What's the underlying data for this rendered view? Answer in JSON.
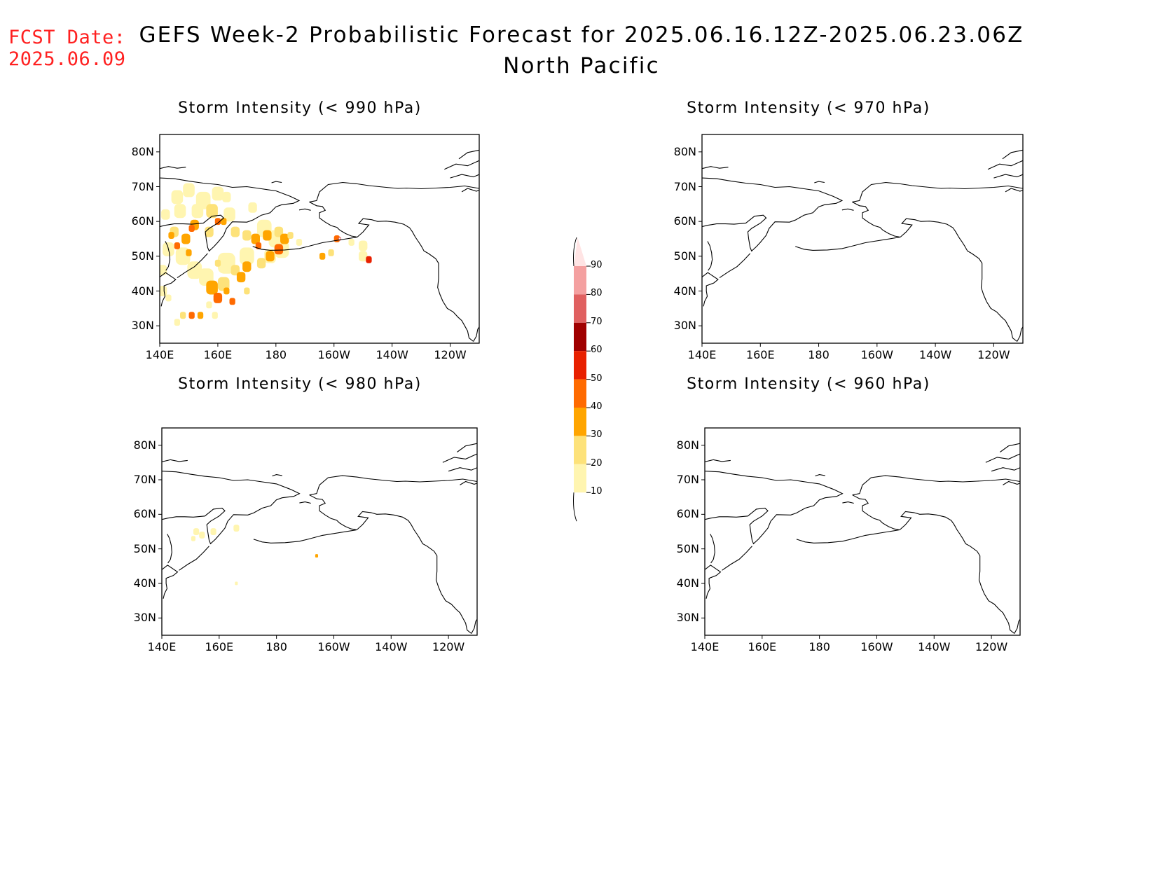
{
  "header": {
    "fcst_date_label": "FCST Date:",
    "fcst_date_value": "2025.06.09",
    "title_line1": "GEFS Week-2 Probabilistic Forecast for 2025.06.16.12Z-2025.06.23.06Z",
    "title_line2": "North Pacific"
  },
  "axes": {
    "y_ticks": [
      "80N",
      "70N",
      "60N",
      "50N",
      "40N",
      "30N"
    ],
    "x_ticks": [
      "140E",
      "160E",
      "180",
      "160W",
      "140W",
      "120W"
    ]
  },
  "panels": [
    {
      "id": "p990",
      "title": "Storm Intensity (< 990 hPa)",
      "has_data": true
    },
    {
      "id": "p970",
      "title": "Storm Intensity (< 970 hPa)",
      "has_data": false
    },
    {
      "id": "p980",
      "title": "Storm Intensity (< 980 hPa)",
      "has_data": true
    },
    {
      "id": "p960",
      "title": "Storm Intensity (< 960 hPa)",
      "has_data": false
    }
  ],
  "colorbar": {
    "levels": [
      "10",
      "20",
      "30",
      "40",
      "50",
      "60",
      "70",
      "80",
      "90"
    ],
    "colors": [
      "#fff5b0",
      "#fde27a",
      "#ffa500",
      "#ff6a00",
      "#e82000",
      "#a00000",
      "#e06060",
      "#f4a0a0",
      "#ffe4e4"
    ]
  }
}
